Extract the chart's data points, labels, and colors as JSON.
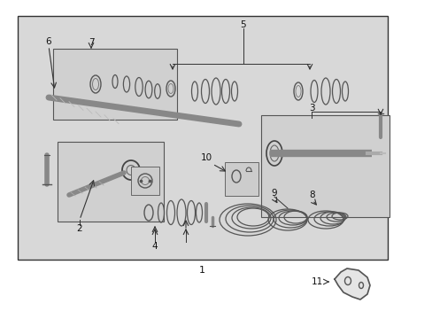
{
  "fig_width": 4.89,
  "fig_height": 3.6,
  "dpi": 100,
  "bg_outer": "#ffffff",
  "bg_main": "#d8d8d8",
  "border_color": "#333333",
  "part_color": "#444444",
  "line_color": "#555555"
}
